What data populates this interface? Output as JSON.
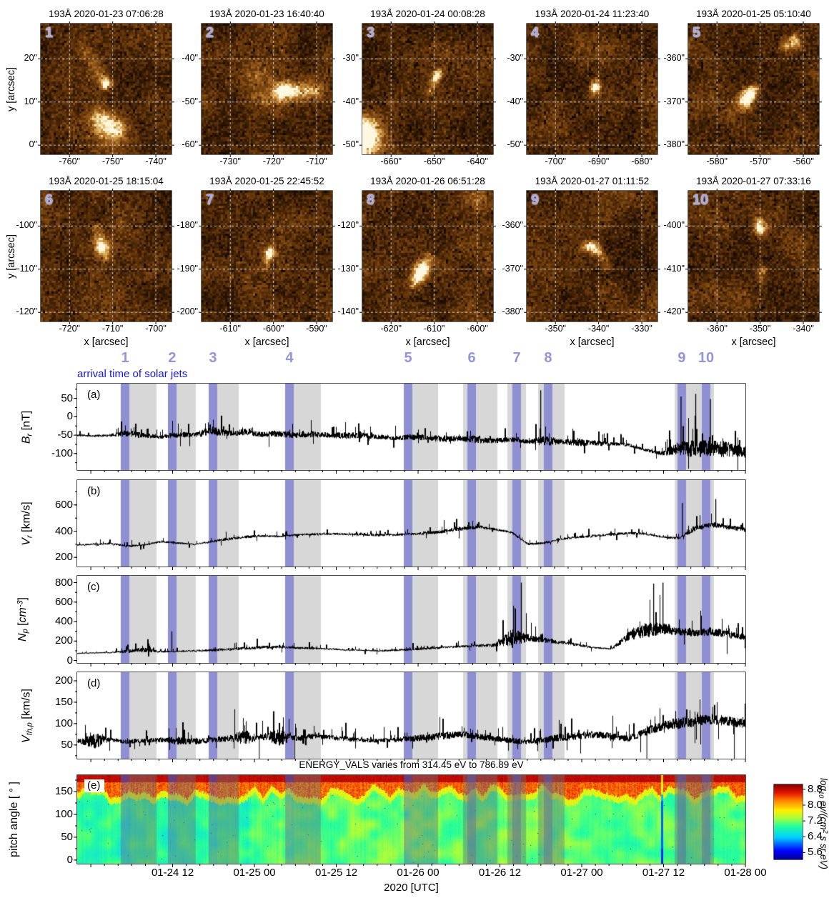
{
  "arrival": {
    "label": "arrival time of solar jets"
  },
  "xaxis": {
    "label": "2020 [UTC]",
    "ticks": [
      "01-24 12",
      "01-25 00",
      "01-25 12",
      "01-26 00",
      "01-26 12",
      "01-27 00",
      "01-27 12",
      "01-28 00"
    ]
  },
  "jets": [
    {
      "n": "1",
      "frac": 0.0717
    },
    {
      "n": "2",
      "frac": 0.1422
    },
    {
      "n": "3",
      "frac": 0.2032
    },
    {
      "n": "4",
      "frac": 0.3177
    },
    {
      "n": "5",
      "frac": 0.4952
    },
    {
      "n": "6",
      "frac": 0.5904
    },
    {
      "n": "7",
      "frac": 0.6578
    },
    {
      "n": "8",
      "frac": 0.7048
    },
    {
      "n": "9",
      "frac": 0.9048
    },
    {
      "n": "10",
      "frac": 0.9412
    }
  ],
  "bands": {
    "gray_color": "#d7d7d7",
    "purple_color": "#8f8fd4",
    "gray": [
      [
        0.0781,
        0.1187
      ],
      [
        0.1487,
        0.1775
      ],
      [
        0.2096,
        0.2417
      ],
      [
        0.3241,
        0.3647
      ],
      [
        0.5016,
        0.5401
      ],
      [
        0.5775,
        0.6289
      ],
      [
        0.6439,
        0.6717
      ],
      [
        0.6898,
        0.7294
      ],
      [
        0.8941,
        0.9529
      ]
    ],
    "purple": [
      [
        0.0652,
        0.0781
      ],
      [
        0.1358,
        0.1487
      ],
      [
        0.1968,
        0.2096
      ],
      [
        0.3112,
        0.3241
      ],
      [
        0.4888,
        0.5016
      ],
      [
        0.584,
        0.5968
      ],
      [
        0.6513,
        0.6642
      ],
      [
        0.6984,
        0.7112
      ],
      [
        0.8984,
        0.9112
      ],
      [
        0.9348,
        0.9476
      ]
    ]
  },
  "image_grid": {
    "x": [
      0.22,
      0.55,
      0.88
    ],
    "y": [
      0.27,
      0.6,
      0.93
    ]
  },
  "images": [
    {
      "n": "1",
      "title": "193Å 2020-01-23 07:06:28",
      "ylabel": "y [arcsec]",
      "xlabel": "",
      "yticks": [
        "20\"",
        "10\"",
        "0\""
      ],
      "xticks": [
        "-760\"",
        "-750\"",
        "-740\""
      ],
      "seed": 11,
      "blobs": [
        [
          0.5,
          0.46,
          0.03,
          0.95
        ],
        [
          0.455,
          0.385,
          0.035,
          0.3
        ],
        [
          0.4,
          0.3,
          0.035,
          0.25
        ],
        [
          0.345,
          0.225,
          0.03,
          0.22
        ],
        [
          0.5,
          0.77,
          0.075,
          0.45
        ],
        [
          0.575,
          0.815,
          0.065,
          0.4
        ],
        [
          0.435,
          0.71,
          0.05,
          0.28
        ]
      ]
    },
    {
      "n": "2",
      "title": "193Å 2020-01-23 16:40:40",
      "ylabel": "",
      "xlabel": "",
      "yticks": [
        "-40\"",
        "-50\"",
        "-60\""
      ],
      "xticks": [
        "-730\"",
        "-720\"",
        "-710\""
      ],
      "seed": 12,
      "blobs": [
        [
          0.62,
          0.52,
          0.042,
          0.9
        ],
        [
          0.71,
          0.515,
          0.05,
          0.5
        ],
        [
          0.8,
          0.515,
          0.05,
          0.42
        ],
        [
          0.89,
          0.52,
          0.045,
          0.32
        ],
        [
          0.48,
          0.56,
          0.09,
          0.22
        ],
        [
          0.42,
          0.38,
          0.09,
          0.16
        ]
      ]
    },
    {
      "n": "3",
      "title": "193Å 2020-01-24 00:08:28",
      "ylabel": "",
      "xlabel": "",
      "yticks": [
        "-30\"",
        "-40\"",
        "-50\""
      ],
      "xticks": [
        "-660\"",
        "-650\"",
        "-640\""
      ],
      "seed": 13,
      "blobs": [
        [
          0.565,
          0.415,
          0.025,
          0.7
        ],
        [
          0.585,
          0.375,
          0.025,
          0.5
        ],
        [
          0.54,
          0.47,
          0.022,
          0.45
        ],
        [
          0.515,
          0.525,
          0.02,
          0.32
        ],
        [
          0.02,
          0.83,
          0.09,
          0.9
        ],
        [
          0.0,
          0.95,
          0.08,
          0.6
        ]
      ]
    },
    {
      "n": "4",
      "title": "193Å 2020-01-24 11:23:40",
      "ylabel": "",
      "xlabel": "",
      "yticks": [
        "-30\"",
        "-40\"",
        "-50\""
      ],
      "xticks": [
        "-700\"",
        "-690\"",
        "-680\""
      ],
      "seed": 14,
      "blobs": [
        [
          0.525,
          0.49,
          0.028,
          0.85
        ],
        [
          0.535,
          0.44,
          0.03,
          0.3
        ],
        [
          0.5,
          0.555,
          0.025,
          0.22
        ]
      ]
    },
    {
      "n": "5",
      "title": "193Å 2020-01-25 05:10:40",
      "ylabel": "",
      "xlabel": "",
      "yticks": [
        "-360\"",
        "-370\"",
        "-380\""
      ],
      "xticks": [
        "-580\"",
        "-570\"",
        "-560\""
      ],
      "seed": 15,
      "blobs": [
        [
          0.465,
          0.555,
          0.04,
          0.9
        ],
        [
          0.425,
          0.61,
          0.045,
          0.5
        ],
        [
          0.5,
          0.5,
          0.03,
          0.5
        ],
        [
          0.815,
          0.135,
          0.04,
          0.65
        ],
        [
          0.74,
          0.175,
          0.035,
          0.4
        ],
        [
          0.315,
          0.69,
          0.04,
          0.16
        ]
      ]
    },
    {
      "n": "6",
      "title": "193Å 2020-01-25 18:15:04",
      "ylabel": "y [arcsec]",
      "xlabel": "x [arcsec]",
      "yticks": [
        "-100\"",
        "-110\"",
        "-120\""
      ],
      "xticks": [
        "-720\"",
        "-710\"",
        "-700\""
      ],
      "seed": 16,
      "blobs": [
        [
          0.47,
          0.44,
          0.038,
          0.9
        ],
        [
          0.445,
          0.36,
          0.033,
          0.4
        ],
        [
          0.425,
          0.285,
          0.03,
          0.28
        ],
        [
          0.5,
          0.52,
          0.027,
          0.3
        ]
      ]
    },
    {
      "n": "7",
      "title": "193Å 2020-01-25 22:45:52",
      "ylabel": "",
      "xlabel": "x [arcsec]",
      "yticks": [
        "-180\"",
        "-190\"",
        "-200\""
      ],
      "xticks": [
        "-610\"",
        "-600\"",
        "-590\""
      ],
      "seed": 17,
      "blobs": [
        [
          0.525,
          0.475,
          0.03,
          0.8
        ],
        [
          0.505,
          0.535,
          0.025,
          0.38
        ],
        [
          0.485,
          0.6,
          0.022,
          0.2
        ]
      ]
    },
    {
      "n": "8",
      "title": "193Å 2020-01-26 06:51:28",
      "ylabel": "",
      "xlabel": "x [arcsec]",
      "yticks": [
        "-120\"",
        "-130\"",
        "-140\""
      ],
      "xticks": [
        "-620\"",
        "-610\"",
        "-600\""
      ],
      "seed": 18,
      "blobs": [
        [
          0.45,
          0.615,
          0.042,
          0.9
        ],
        [
          0.42,
          0.675,
          0.042,
          0.6
        ],
        [
          0.475,
          0.555,
          0.035,
          0.5
        ],
        [
          0.515,
          0.5,
          0.027,
          0.3
        ],
        [
          0.385,
          0.73,
          0.033,
          0.3
        ],
        [
          0.88,
          0.07,
          0.07,
          0.25
        ]
      ]
    },
    {
      "n": "9",
      "title": "193Å 2020-01-27 01:11:52",
      "ylabel": "",
      "xlabel": "x [arcsec]",
      "yticks": [
        "-360\"",
        "-370\"",
        "-380\""
      ],
      "xticks": [
        "-350\"",
        "-340\"",
        "-330\""
      ],
      "seed": 19,
      "blobs": [
        [
          0.5,
          0.43,
          0.033,
          0.75
        ],
        [
          0.555,
          0.465,
          0.03,
          0.5
        ],
        [
          0.595,
          0.525,
          0.026,
          0.42
        ],
        [
          0.615,
          0.59,
          0.023,
          0.3
        ],
        [
          0.445,
          0.425,
          0.027,
          0.3
        ]
      ]
    },
    {
      "n": "10",
      "title": "193Å 2020-01-27 07:33:16",
      "ylabel": "",
      "xlabel": "x [arcsec]",
      "yticks": [
        "-400\"",
        "-410\"",
        "-420\""
      ],
      "xticks": [
        "-360\"",
        "-350\"",
        "-340\""
      ],
      "seed": 20,
      "blobs": [
        [
          0.555,
          0.295,
          0.03,
          0.85
        ],
        [
          0.54,
          0.235,
          0.026,
          0.4
        ],
        [
          0.565,
          0.615,
          0.026,
          0.5
        ],
        [
          0.555,
          0.675,
          0.022,
          0.3
        ],
        [
          0.55,
          0.45,
          0.018,
          0.2
        ]
      ]
    }
  ],
  "chart_data": {
    "type": "multi-panel solar-wind time series with pitch-angle spectrogram",
    "x_range": [
      "2020-01-23 22:00",
      "2020-01-28 00:00"
    ],
    "x_tick_labels": [
      "01-24 12",
      "01-25 00",
      "01-25 12",
      "01-26 00",
      "01-26 12",
      "01-27 00",
      "01-27 12",
      "01-28 00"
    ],
    "panels": [
      {
        "id": "a",
        "letter": "(a)",
        "ylabel": [
          [
            "B",
            "i"
          ],
          [
            "r",
            "isub"
          ],
          [
            " [nT]",
            "n"
          ]
        ],
        "ylim": [
          -145,
          90
        ],
        "yticks": [
          50,
          0,
          -50,
          -100
        ],
        "minor_step": 25,
        "seed": 31,
        "noise_down": 0.5,
        "trend": [
          -50,
          -52,
          -50,
          -45,
          -52,
          -55,
          -48,
          -50,
          -38,
          -45,
          -42,
          -48,
          -46,
          -50,
          -48,
          -50,
          -52,
          -50,
          -55,
          -58,
          -55,
          -58,
          -60,
          -58,
          -62,
          -65,
          -62,
          -68,
          -65,
          -68,
          -70,
          -72,
          -74,
          -76,
          -90,
          -100,
          -85,
          -88,
          -85,
          -90,
          -95
        ],
        "spike_amp": [
          20,
          18,
          25,
          60,
          45,
          30,
          55,
          40,
          85,
          50,
          55,
          45,
          60,
          50,
          55,
          45,
          60,
          50,
          40,
          35,
          55,
          45,
          60,
          50,
          65,
          45,
          40,
          35,
          90,
          45,
          60,
          50,
          35,
          30,
          25,
          35,
          120,
          150,
          130,
          140,
          110
        ],
        "events": [
          [
            0.693,
            72
          ],
          [
            0.903,
            55
          ],
          [
            0.925,
            62
          ],
          [
            0.947,
            48
          ]
        ],
        "gaps": []
      },
      {
        "id": "b",
        "letter": "(b)",
        "ylabel": [
          [
            "V",
            "i"
          ],
          [
            "r",
            "isub"
          ],
          [
            " [km/s]",
            "n"
          ]
        ],
        "ylim": [
          130,
          790
        ],
        "yticks": [
          600,
          400,
          200
        ],
        "minor_step": 100,
        "seed": 32,
        "noise_down": 0.8,
        "trend": [
          295,
          300,
          305,
          285,
          295,
          320,
          310,
          300,
          320,
          340,
          355,
          365,
          360,
          370,
          375,
          380,
          378,
          375,
          370,
          372,
          378,
          385,
          400,
          420,
          430,
          415,
          390,
          300,
          310,
          340,
          355,
          365,
          375,
          385,
          380,
          355,
          345,
          420,
          450,
          430,
          410
        ],
        "spike_amp": [
          35,
          40,
          45,
          60,
          40,
          50,
          45,
          40,
          55,
          60,
          70,
          60,
          50,
          55,
          60,
          55,
          50,
          55,
          60,
          55,
          60,
          70,
          90,
          100,
          80,
          60,
          50,
          60,
          50,
          55,
          60,
          65,
          70,
          60,
          55,
          50,
          60,
          120,
          130,
          120,
          110
        ],
        "events": [
          [
            0.905,
            615
          ],
          [
            0.955,
            645
          ]
        ],
        "gaps": []
      },
      {
        "id": "c",
        "letter": "(c)",
        "ylabel": [
          [
            "N",
            "i"
          ],
          [
            "p",
            "isub"
          ],
          [
            " [",
            "n"
          ],
          [
            "cm",
            "i"
          ],
          [
            "-3",
            "isup"
          ],
          [
            "]",
            "n"
          ]
        ],
        "ylim": [
          -25,
          870
        ],
        "yticks": [
          800,
          600,
          400,
          200,
          0
        ],
        "minor_step": 100,
        "seed": 33,
        "noise_down": 0.2,
        "trend": [
          75,
          80,
          82,
          95,
          110,
          90,
          95,
          100,
          105,
          115,
          125,
          135,
          140,
          130,
          125,
          120,
          110,
          105,
          100,
          105,
          115,
          125,
          135,
          145,
          150,
          160,
          240,
          230,
          210,
          185,
          160,
          130,
          120,
          250,
          310,
          330,
          300,
          280,
          300,
          270,
          240
        ],
        "spike_amp": [
          25,
          30,
          35,
          120,
          160,
          60,
          50,
          60,
          80,
          90,
          100,
          110,
          90,
          80,
          70,
          60,
          50,
          45,
          60,
          70,
          80,
          90,
          80,
          70,
          90,
          120,
          560,
          250,
          180,
          120,
          90,
          60,
          50,
          300,
          470,
          420,
          250,
          220,
          280,
          250,
          200
        ],
        "events": [
          [
            0.141,
            300
          ],
          [
            0.664,
            800
          ],
          [
            0.862,
            790
          ],
          [
            0.876,
            800
          ]
        ],
        "gaps": []
      },
      {
        "id": "d",
        "letter": "(d)",
        "ylabel": [
          [
            "V",
            "i"
          ],
          [
            "th,p",
            "isub"
          ],
          [
            " [km/s]",
            "n"
          ]
        ],
        "ylim": [
          18,
          220
        ],
        "yticks": [
          200,
          150,
          100,
          50
        ],
        "minor_step": 25,
        "seed": 34,
        "noise_down": 0.9,
        "trend": [
          58,
          60,
          62,
          58,
          60,
          62,
          60,
          58,
          62,
          65,
          68,
          70,
          68,
          66,
          70,
          68,
          65,
          62,
          60,
          62,
          65,
          68,
          72,
          75,
          70,
          65,
          60,
          58,
          62,
          68,
          72,
          75,
          70,
          65,
          80,
          95,
          100,
          105,
          110,
          105,
          100
        ],
        "spike_amp": [
          25,
          115,
          30,
          35,
          30,
          35,
          60,
          45,
          40,
          45,
          110,
          45,
          120,
          45,
          40,
          35,
          40,
          35,
          30,
          35,
          45,
          50,
          55,
          50,
          45,
          40,
          45,
          40,
          45,
          55,
          60,
          55,
          50,
          45,
          60,
          70,
          80,
          75,
          80,
          75,
          70
        ],
        "events": [],
        "gaps": [
          0.272,
          0.325,
          0.852,
          0.983
        ]
      }
    ],
    "spectrogram": {
      "id": "e",
      "letter": "(e)",
      "title_above": "ENERGY_VALS varies from 314.45 eV to 786.89 eV",
      "ylabel": [
        [
          "pitch angle [ ° ]",
          "n"
        ]
      ],
      "ylim": [
        -8,
        186
      ],
      "yticks": [
        150,
        100,
        50,
        0
      ],
      "pitch_max": 180,
      "body_value": 7.05,
      "red_band_value": 8.35,
      "top_band_value": 8.8,
      "top_band_min_pitch": 166,
      "red_boundary_pitch": 147,
      "cyan_line": {
        "frac": 0.876,
        "body_value": 6.0,
        "red_value": 7.5
      },
      "seed": 55
    },
    "colorbar": {
      "ticks": [
        "8.8",
        "8.0",
        "7.2",
        "6.4",
        "5.6"
      ],
      "tick_values": [
        8.8,
        8.0,
        7.2,
        6.4,
        5.6
      ],
      "value_top": 9.05,
      "value_bottom": 5.25,
      "label": [
        [
          "log",
          "i"
        ],
        [
          "10",
          "isub"
        ],
        [
          " ev/(cm",
          "i"
        ],
        [
          "2",
          "isup"
        ],
        [
          " s sr eV)",
          "i"
        ]
      ]
    }
  }
}
